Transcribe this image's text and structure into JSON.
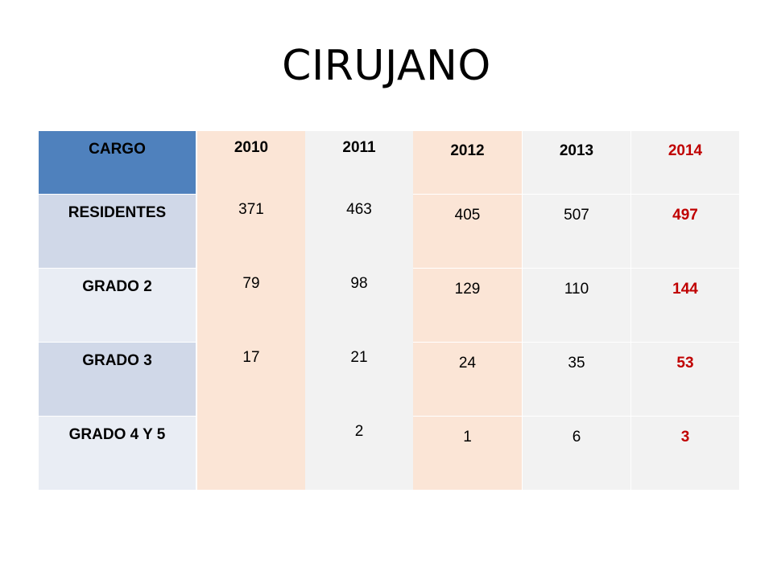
{
  "slide": {
    "title": "CIRUJANO"
  },
  "table": {
    "header": [
      "CARGO",
      "2010",
      "2011",
      "2012",
      "2013",
      "2014"
    ],
    "rows": [
      {
        "cargo": "RESIDENTES",
        "y2010": "371",
        "y2011": "463",
        "y2012": "405",
        "y2013": "507",
        "y2014": "497"
      },
      {
        "cargo": "GRADO 2",
        "y2010": "79",
        "y2011": "98",
        "y2012": "129",
        "y2013": "110",
        "y2014": "144"
      },
      {
        "cargo": "GRADO 3",
        "y2010": "17",
        "y2011": "21",
        "y2012": "24",
        "y2013": "35",
        "y2014": "53"
      },
      {
        "cargo": "GRADO 4 Y 5",
        "y2010": "",
        "y2011": "2",
        "y2012": "1",
        "y2013": "6",
        "y2014": "3"
      }
    ]
  },
  "colors": {
    "header_cargo": "#4f81bd",
    "cargo_dark": "#d0d8e8",
    "cargo_light": "#e9edf4",
    "col2010": "#fbe5d6",
    "col2011": "#f2f2f2",
    "col2012": "#fbe5d6",
    "col2013": "#f2f2f2",
    "col2014": "#f2f2f2",
    "highlight_2014": "#c00000"
  }
}
